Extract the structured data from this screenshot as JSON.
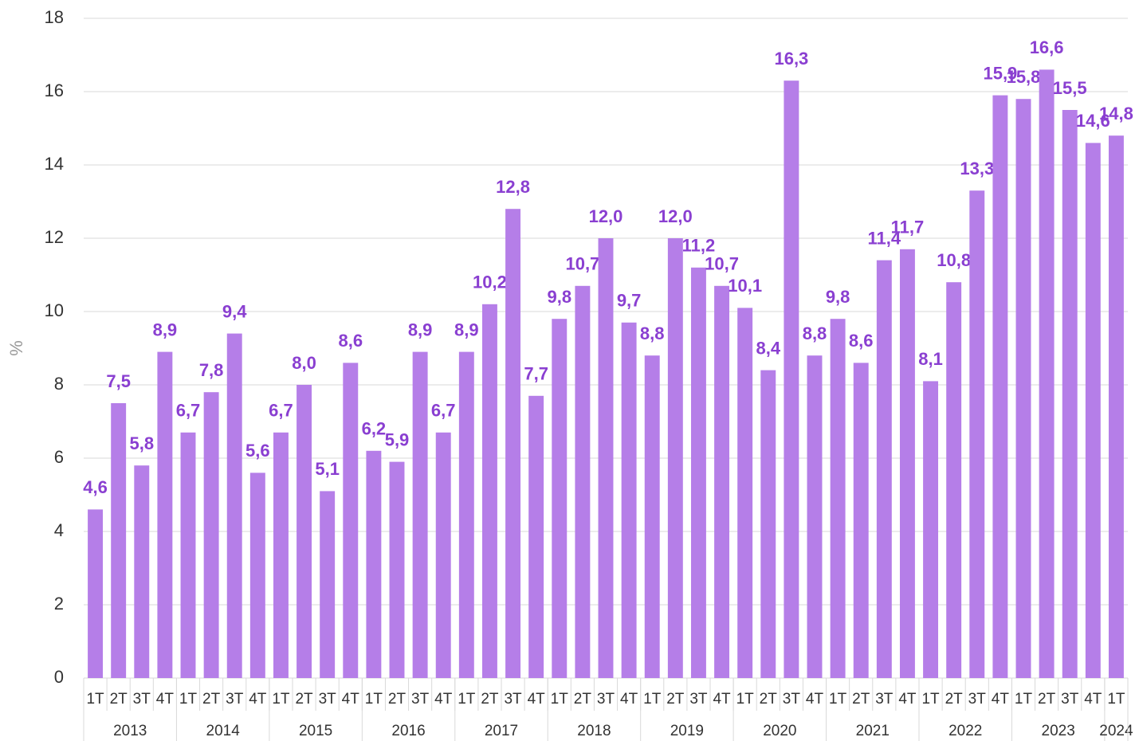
{
  "chart_data": {
    "type": "bar",
    "y_label": "%",
    "color": "#b57ee8",
    "label_color": "#8a3fd1",
    "grid": true,
    "ylim": [
      0,
      18
    ],
    "yticks": [
      0,
      2,
      4,
      6,
      8,
      10,
      12,
      14,
      16,
      18
    ],
    "groups": [
      {
        "label": "2013",
        "categories": [
          "1T",
          "2T",
          "3T",
          "4T"
        ]
      },
      {
        "label": "2014",
        "categories": [
          "1T",
          "2T",
          "3T",
          "4T"
        ]
      },
      {
        "label": "2015",
        "categories": [
          "1T",
          "2T",
          "3T",
          "4T"
        ]
      },
      {
        "label": "2016",
        "categories": [
          "1T",
          "2T",
          "3T",
          "4T"
        ]
      },
      {
        "label": "2017",
        "categories": [
          "1T",
          "2T",
          "3T",
          "4T"
        ]
      },
      {
        "label": "2018",
        "categories": [
          "1T",
          "2T",
          "3T",
          "4T"
        ]
      },
      {
        "label": "2019",
        "categories": [
          "1T",
          "2T",
          "3T",
          "4T"
        ]
      },
      {
        "label": "2020",
        "categories": [
          "1T",
          "2T",
          "3T",
          "4T"
        ]
      },
      {
        "label": "2021",
        "categories": [
          "1T",
          "2T",
          "3T",
          "4T"
        ]
      },
      {
        "label": "2022",
        "categories": [
          "1T",
          "2T",
          "3T",
          "4T"
        ]
      },
      {
        "label": "2023",
        "categories": [
          "1T",
          "2T",
          "3T",
          "4T"
        ]
      },
      {
        "label": "2024",
        "categories": [
          "1T"
        ]
      }
    ],
    "values": [
      4.6,
      7.5,
      5.8,
      8.9,
      6.7,
      7.8,
      9.4,
      5.6,
      6.7,
      8.0,
      5.1,
      8.6,
      6.2,
      5.9,
      8.9,
      6.7,
      8.9,
      10.2,
      12.8,
      7.7,
      9.8,
      10.7,
      12.0,
      9.7,
      8.8,
      12.0,
      11.2,
      10.7,
      10.1,
      8.4,
      16.3,
      8.8,
      9.8,
      8.6,
      11.4,
      11.7,
      8.1,
      10.8,
      13.3,
      15.9,
      15.8,
      16.6,
      15.5,
      14.6,
      14.8
    ],
    "value_labels": [
      "4,6",
      "7,5",
      "5,8",
      "8,9",
      "6,7",
      "7,8",
      "9,4",
      "5,6",
      "6,7",
      "8,0",
      "5,1",
      "8,6",
      "6,2",
      "5,9",
      "8,9",
      "6,7",
      "8,9",
      "10,2",
      "12,8",
      "7,7",
      "9,8",
      "10,7",
      "12,0",
      "9,7",
      "8,8",
      "12,0",
      "11,2",
      "10,7",
      "10,1",
      "8,4",
      "16,3",
      "8,8",
      "9,8",
      "8,6",
      "11,4",
      "11,7",
      "8,1",
      "10,8",
      "13,3",
      "15,9",
      "15,8",
      "16,6",
      "15,5",
      "14,6",
      "14,8"
    ]
  }
}
